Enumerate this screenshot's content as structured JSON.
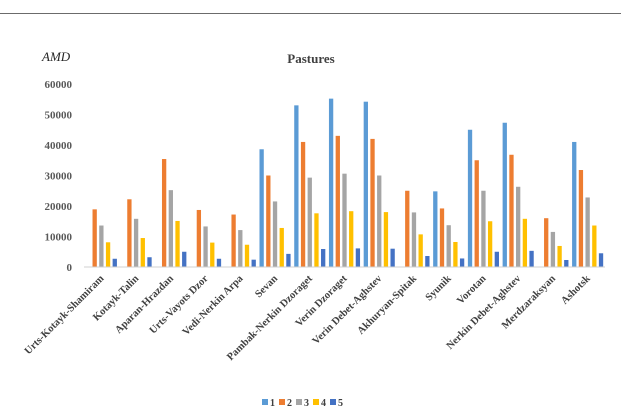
{
  "chart_data": {
    "type": "bar",
    "title": "Pastures",
    "unit_label": "AMD",
    "xlabel": "",
    "ylabel": "",
    "ylim": [
      0,
      60000
    ],
    "yticks": [
      0,
      10000,
      20000,
      30000,
      40000,
      50000,
      60000
    ],
    "grid": false,
    "legend_position": "bottom",
    "categories": [
      "Urts-Kotayk-Shamiram",
      "Kotayk-Talin",
      "Aparan-Hrazdan",
      "Urts-Vayots Dzor",
      "Vedi-Nerkin Arpa",
      "Sevan",
      "Pambak-Nerkin Dzoraget",
      "Verin Dzoraget",
      "Verin Debet-Aghstev",
      "Akhuryan-Spitak",
      "Syunik",
      "Vorotan",
      "Nerkin Debet-Aghstev",
      "Merdzaraksyan",
      "Ashotsk"
    ],
    "series": [
      {
        "name": "1",
        "color": "#5B9BD5",
        "values": [
          null,
          null,
          null,
          null,
          null,
          38600,
          53000,
          55200,
          54200,
          null,
          24800,
          45000,
          47300,
          null,
          41000
        ]
      },
      {
        "name": "2",
        "color": "#ED7D31",
        "values": [
          18900,
          22200,
          35400,
          18700,
          17200,
          30000,
          41000,
          43000,
          42000,
          25000,
          19200,
          35000,
          36800,
          16000,
          31800
        ]
      },
      {
        "name": "3",
        "color": "#A5A5A5",
        "values": [
          13600,
          15800,
          25200,
          13300,
          12100,
          21500,
          29300,
          30600,
          30000,
          17900,
          13700,
          25000,
          26300,
          11500,
          22800
        ]
      },
      {
        "name": "4",
        "color": "#FFC000",
        "values": [
          8100,
          9500,
          15100,
          8000,
          7300,
          12800,
          17600,
          18300,
          18000,
          10700,
          8200,
          15000,
          15800,
          6900,
          13600
        ]
      },
      {
        "name": "5",
        "color": "#4472C4",
        "values": [
          2700,
          3200,
          5000,
          2700,
          2400,
          4300,
          5900,
          6100,
          6000,
          3600,
          2800,
          5000,
          5300,
          2300,
          4500
        ]
      }
    ]
  }
}
